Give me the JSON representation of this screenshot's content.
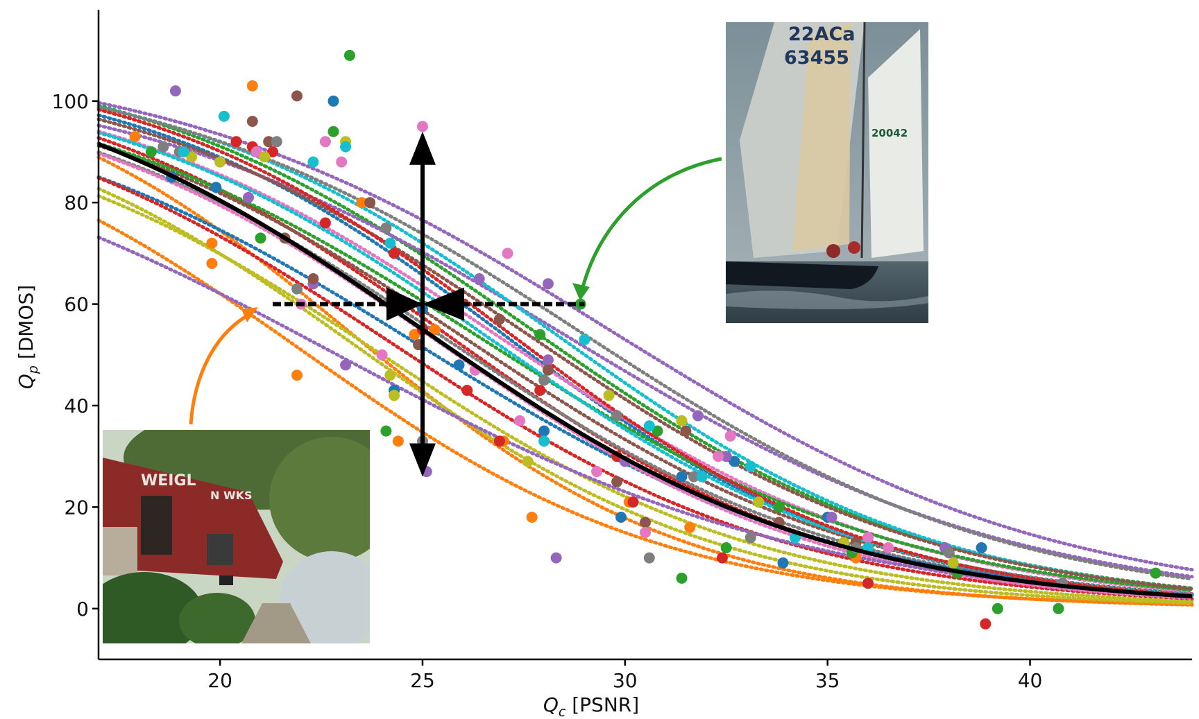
{
  "chart_data": {
    "type": "scatter",
    "title": "",
    "xlabel": "Q_c [PSNR]",
    "xlabel_main": "Q",
    "xlabel_sub": "c",
    "xlabel_unit": " [PSNR]",
    "ylabel": "Q_p [DMOS]",
    "ylabel_main": "Q",
    "ylabel_sub": "p",
    "ylabel_unit": " [DMOS]",
    "xlim": [
      17,
      44
    ],
    "ylim": [
      -10,
      118
    ],
    "xticks": [
      "20",
      "25",
      "30",
      "35",
      "40"
    ],
    "yticks": [
      "0",
      "20",
      "40",
      "60",
      "80",
      "100"
    ],
    "grid": false,
    "mean_curve": {
      "style": "solid",
      "color": "#000000",
      "midpoint": 25,
      "slope": 0.2,
      "top": 110,
      "bottom": 0
    },
    "crosshair": {
      "center": [
        25,
        60
      ],
      "vertical_range": [
        26,
        94
      ],
      "horizontal_range": [
        21.3,
        29
      ]
    },
    "palette": [
      "#1f77b4",
      "#ff7f0e",
      "#2ca02c",
      "#d62728",
      "#9467bd",
      "#8c564b",
      "#e377c2",
      "#7f7f7f",
      "#bcbd22",
      "#17becf"
    ],
    "series": [
      {
        "color": "#1f77b4",
        "fit": {
          "top": 108,
          "mid": 27.0,
          "slope": 0.22
        },
        "points": [
          [
            18.8,
            85
          ],
          [
            19.9,
            83
          ],
          [
            22.8,
            100
          ],
          [
            24.3,
            43
          ],
          [
            25,
            59
          ],
          [
            25.9,
            48
          ],
          [
            28,
            35
          ],
          [
            29.9,
            18
          ],
          [
            31.4,
            26
          ],
          [
            32.7,
            29
          ],
          [
            33.9,
            9
          ],
          [
            35,
            18
          ],
          [
            38.8,
            12
          ]
        ]
      },
      {
        "color": "#ff7f0e",
        "fit": {
          "top": 109,
          "mid": 23.2,
          "slope": 0.24
        },
        "points": [
          [
            17.9,
            93
          ],
          [
            19.8,
            72
          ],
          [
            19.8,
            68
          ],
          [
            20.8,
            103
          ],
          [
            21.9,
            46
          ],
          [
            23.5,
            80
          ],
          [
            24.4,
            33
          ],
          [
            24.8,
            54
          ],
          [
            25.3,
            55
          ],
          [
            27,
            33
          ],
          [
            27.7,
            18
          ],
          [
            30.1,
            21
          ],
          [
            31.6,
            16
          ],
          [
            35.7,
            10
          ]
        ]
      },
      {
        "color": "#2ca02c",
        "fit": {
          "top": 111,
          "mid": 27.6,
          "slope": 0.2
        },
        "points": [
          [
            18.3,
            90
          ],
          [
            21,
            73
          ],
          [
            22.8,
            94
          ],
          [
            23.2,
            109
          ],
          [
            24.1,
            35
          ],
          [
            27.9,
            54
          ],
          [
            28.9,
            60
          ],
          [
            30.8,
            35
          ],
          [
            31.4,
            6
          ],
          [
            32.5,
            12
          ],
          [
            33.8,
            20
          ],
          [
            35.6,
            11
          ],
          [
            38.2,
            7
          ],
          [
            39.2,
            0
          ],
          [
            40.7,
            0
          ],
          [
            43.1,
            7
          ]
        ]
      },
      {
        "color": "#d62728",
        "fit": {
          "top": 108,
          "mid": 25.6,
          "slope": 0.21
        },
        "points": [
          [
            20.4,
            92
          ],
          [
            20.8,
            91
          ],
          [
            21.3,
            90
          ],
          [
            22.6,
            76
          ],
          [
            24.3,
            70
          ],
          [
            25,
            55
          ],
          [
            26.1,
            43
          ],
          [
            26.9,
            33
          ],
          [
            27.9,
            43
          ],
          [
            29.8,
            30
          ],
          [
            30.2,
            21
          ],
          [
            32.4,
            10
          ],
          [
            36,
            5
          ],
          [
            38.9,
            -3
          ]
        ]
      },
      {
        "color": "#9467bd",
        "fit": {
          "top": 107,
          "mid": 28.6,
          "slope": 0.18
        },
        "points": [
          [
            18.9,
            102
          ],
          [
            20.7,
            81
          ],
          [
            22.3,
            64
          ],
          [
            23.1,
            48
          ],
          [
            25.1,
            27
          ],
          [
            26.4,
            65
          ],
          [
            28.1,
            64
          ],
          [
            28.1,
            49
          ],
          [
            28.3,
            10
          ],
          [
            30,
            29
          ],
          [
            31.8,
            38
          ],
          [
            32.5,
            30
          ],
          [
            35.1,
            18
          ],
          [
            37.9,
            12
          ],
          [
            40.8,
            5
          ]
        ]
      },
      {
        "color": "#8c564b",
        "fit": {
          "top": 106,
          "mid": 26.1,
          "slope": 0.2
        },
        "points": [
          [
            20.8,
            96
          ],
          [
            21.2,
            92
          ],
          [
            21.6,
            73
          ],
          [
            21.9,
            101
          ],
          [
            22.3,
            65
          ],
          [
            23.7,
            80
          ],
          [
            24.9,
            52
          ],
          [
            26.9,
            57
          ],
          [
            28.1,
            47
          ],
          [
            29.8,
            25
          ],
          [
            30.5,
            17
          ],
          [
            31.5,
            35
          ],
          [
            33.8,
            17
          ],
          [
            35.7,
            13
          ]
        ]
      },
      {
        "color": "#e377c2",
        "fit": {
          "top": 107,
          "mid": 26.9,
          "slope": 0.2
        },
        "points": [
          [
            20.9,
            90
          ],
          [
            22,
            60
          ],
          [
            22.6,
            92
          ],
          [
            23,
            88
          ],
          [
            24,
            50
          ],
          [
            25,
            95
          ],
          [
            26.3,
            47
          ],
          [
            27.1,
            70
          ],
          [
            27.4,
            37
          ],
          [
            29.3,
            27
          ],
          [
            30.5,
            15
          ],
          [
            32.3,
            30
          ],
          [
            32.6,
            34
          ],
          [
            36,
            14
          ],
          [
            36.5,
            12
          ]
        ]
      },
      {
        "color": "#7f7f7f",
        "fit": {
          "top": 106,
          "mid": 25.6,
          "slope": 0.2
        },
        "points": [
          [
            18.6,
            91
          ],
          [
            19,
            90
          ],
          [
            21.4,
            92
          ],
          [
            21.9,
            63
          ],
          [
            24.1,
            75
          ],
          [
            25,
            33
          ],
          [
            28,
            45
          ],
          [
            29.8,
            38
          ],
          [
            30.6,
            10
          ],
          [
            31.7,
            26
          ],
          [
            33.1,
            14
          ],
          [
            35.7,
            12
          ],
          [
            38,
            11
          ],
          [
            40.8,
            5
          ]
        ]
      },
      {
        "color": "#bcbd22",
        "fit": {
          "top": 100,
          "mid": 24.0,
          "slope": 0.21
        },
        "points": [
          [
            19.3,
            89
          ],
          [
            20,
            88
          ],
          [
            21.1,
            89
          ],
          [
            23.1,
            92
          ],
          [
            24.2,
            46
          ],
          [
            24.3,
            42
          ],
          [
            27.6,
            29
          ],
          [
            29.6,
            42
          ],
          [
            31.4,
            37
          ],
          [
            33.3,
            21
          ],
          [
            35.4,
            13
          ],
          [
            38.1,
            9
          ]
        ]
      },
      {
        "color": "#17becf",
        "fit": {
          "top": 108,
          "mid": 28.3,
          "slope": 0.21
        },
        "points": [
          [
            19.1,
            90
          ],
          [
            20.1,
            97
          ],
          [
            22.3,
            88
          ],
          [
            23.1,
            91
          ],
          [
            24.2,
            72
          ],
          [
            28,
            33
          ],
          [
            29,
            53
          ],
          [
            30.6,
            36
          ],
          [
            31.9,
            26
          ],
          [
            33.1,
            28
          ],
          [
            34.2,
            14
          ],
          [
            36,
            12
          ]
        ]
      },
      {
        "color": "#1f77b4",
        "fit": {
          "top": 104,
          "mid": 24.9,
          "slope": 0.19
        },
        "points": []
      },
      {
        "color": "#ff7f0e",
        "fit": {
          "top": 102,
          "mid": 22.0,
          "slope": 0.22
        },
        "points": []
      },
      {
        "color": "#2ca02c",
        "fit": {
          "top": 107,
          "mid": 26.4,
          "slope": 0.19
        },
        "points": []
      },
      {
        "color": "#d62728",
        "fit": {
          "top": 105,
          "mid": 24.2,
          "slope": 0.2
        },
        "points": []
      },
      {
        "color": "#9467bd",
        "fit": {
          "top": 110,
          "mid": 29.6,
          "slope": 0.18
        },
        "points": []
      },
      {
        "color": "#8c564b",
        "fit": {
          "top": 108,
          "mid": 27.6,
          "slope": 0.2
        },
        "points": []
      },
      {
        "color": "#e377c2",
        "fit": {
          "top": 105,
          "mid": 25.4,
          "slope": 0.21
        },
        "points": []
      },
      {
        "color": "#7f7f7f",
        "fit": {
          "top": 109,
          "mid": 28.9,
          "slope": 0.19
        },
        "points": []
      },
      {
        "color": "#bcbd22",
        "fit": {
          "top": 103,
          "mid": 23.4,
          "slope": 0.22
        },
        "points": []
      },
      {
        "color": "#17becf",
        "fit": {
          "top": 106,
          "mid": 26.7,
          "slope": 0.21
        },
        "points": []
      },
      {
        "color": "#9467bd",
        "fit": {
          "top": 100,
          "mid": 22.9,
          "slope": 0.17
        },
        "points": []
      },
      {
        "color": "#d62728",
        "fit": {
          "top": 109,
          "mid": 27.1,
          "slope": 0.22
        },
        "points": []
      }
    ],
    "insets": [
      {
        "name": "sailboat photo",
        "arrow_color": "#2ca02c",
        "points_to": [
          29,
          62
        ]
      },
      {
        "name": "street photo",
        "arrow_color": "#ff7f0e",
        "points_to": [
          22.5,
          60
        ]
      }
    ]
  },
  "photos": {
    "sailboat": {
      "sail_text_1": "22ACa",
      "sail_text_2": "63455",
      "sail_text_3": "20042"
    },
    "street": {
      "sign_text_1": "WEIGL",
      "sign_text_2": "N WKS"
    }
  }
}
